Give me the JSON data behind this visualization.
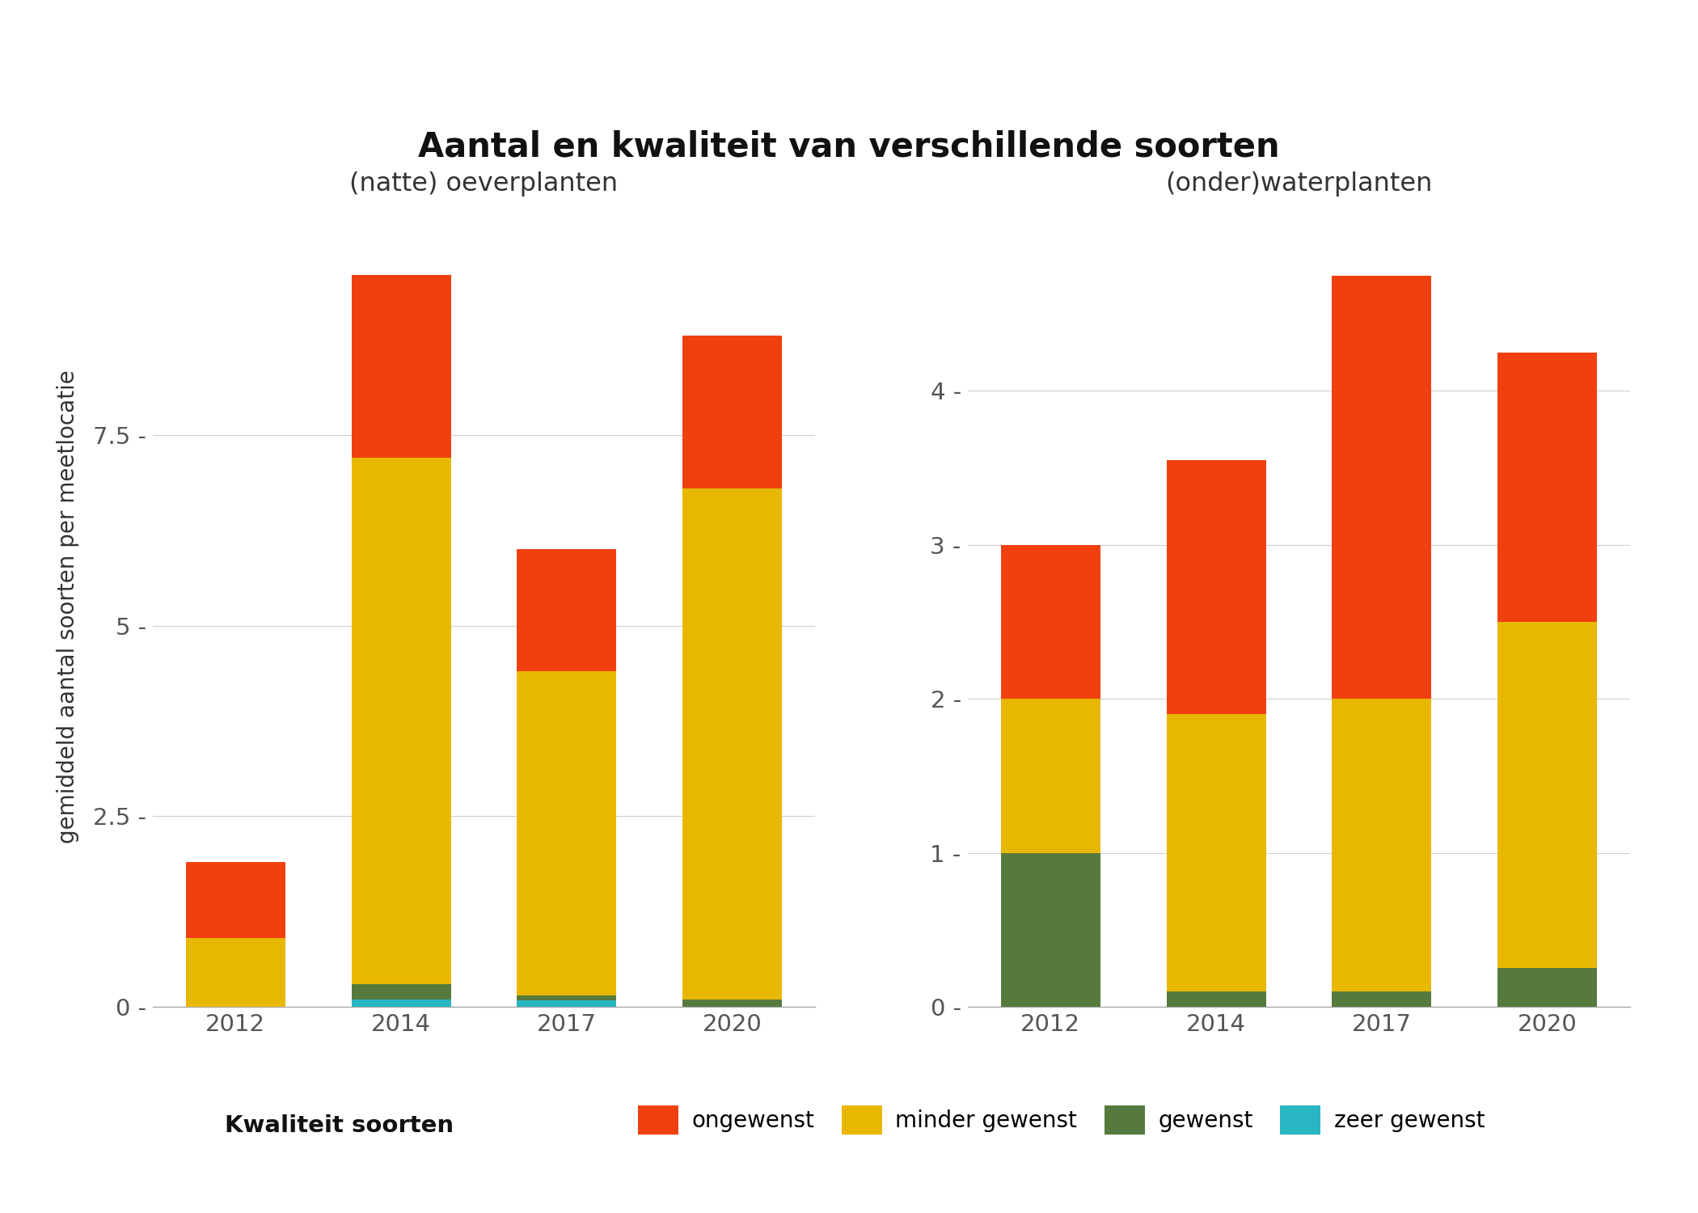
{
  "title": "Aantal en kwaliteit van verschillende soorten",
  "subtitle_left": "(natte) oeverplanten",
  "subtitle_right": "(onder)waterplanten",
  "ylabel": "gemiddeld aantal soorten per meetlocatie",
  "years": [
    2012,
    2014,
    2017,
    2020
  ],
  "left": {
    "zeer_gewenst": [
      0.0,
      0.1,
      0.08,
      0.0
    ],
    "gewenst": [
      0.0,
      0.2,
      0.07,
      0.1
    ],
    "minder_gewenst": [
      0.9,
      6.9,
      4.25,
      6.7
    ],
    "ongewenst": [
      1.0,
      2.4,
      1.6,
      2.0
    ]
  },
  "right": {
    "zeer_gewenst": [
      0.0,
      0.0,
      0.0,
      0.0
    ],
    "gewenst": [
      1.0,
      0.1,
      0.1,
      0.25
    ],
    "minder_gewenst": [
      1.0,
      1.8,
      1.9,
      2.25
    ],
    "ongewenst": [
      1.0,
      1.65,
      2.75,
      1.75
    ]
  },
  "colors": {
    "zeer_gewenst": "#29B6C2",
    "gewenst": "#567A3D",
    "minder_gewenst": "#E8B800",
    "ongewenst": "#F04010"
  },
  "left_yticks": [
    0.0,
    2.5,
    5.0,
    7.5
  ],
  "right_yticks": [
    0,
    1,
    2,
    3,
    4
  ],
  "left_ylim": [
    0,
    10.5
  ],
  "right_ylim": [
    0,
    5.2
  ],
  "background_color": "#FFFFFF",
  "panel_bg": "#FFFFFF",
  "grid_color": "#D0D0D0",
  "tick_color": "#555555",
  "axis_color": "#AAAAAA"
}
